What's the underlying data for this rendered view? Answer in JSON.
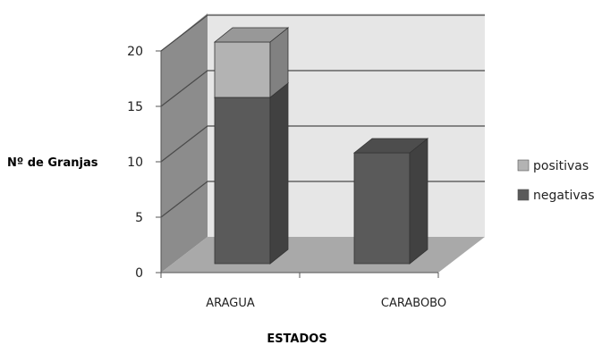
{
  "chart_data": {
    "type": "bar",
    "stacked": true,
    "three_d": true,
    "categories": [
      "ARAGUA",
      "CARABOBO"
    ],
    "series": [
      {
        "name": "negativas",
        "values": [
          15,
          10
        ],
        "color": "#5a5a5a"
      },
      {
        "name": "positivas",
        "values": [
          5,
          0
        ],
        "color": "#b3b3b3"
      }
    ],
    "xlabel": "ESTADOS",
    "ylabel": "Nº de Granjas",
    "ylim": [
      0,
      20
    ],
    "yticks": [
      0,
      5,
      10,
      15,
      20
    ],
    "grid": true,
    "legend_position": "right",
    "colors": {
      "back_wall": "#e6e6e6",
      "side_wall": "#8c8c8c",
      "floor": "#a9a9a9",
      "gridline": "#4a4a4a"
    }
  }
}
